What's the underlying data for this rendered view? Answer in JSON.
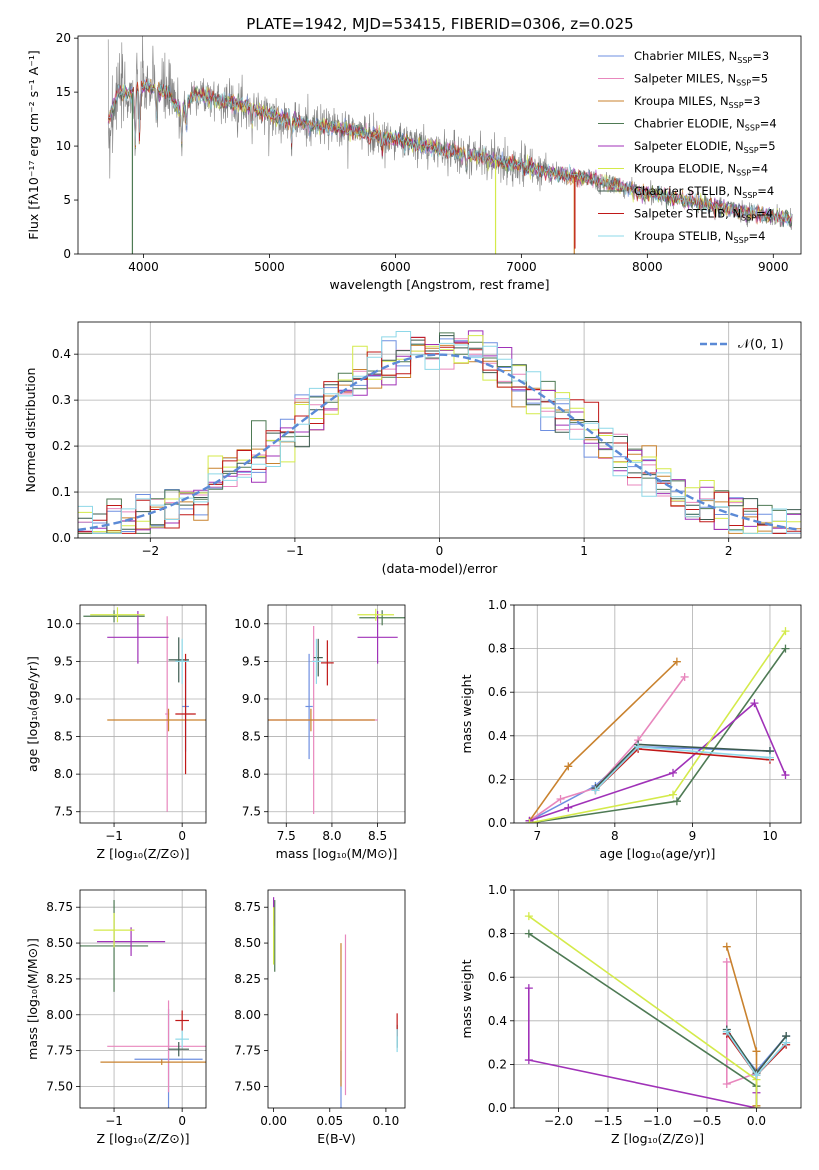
{
  "figure_title": "PLATE=1942, MJD=53415, FIBERID=0306, z=0.025",
  "models": [
    {
      "name": "Chabrier MILES",
      "nssp": "3",
      "color": "#6e8fe0"
    },
    {
      "name": "Salpeter MILES",
      "nssp": "5",
      "color": "#e887bd"
    },
    {
      "name": "Kroupa MILES",
      "nssp": "3",
      "color": "#c9822e"
    },
    {
      "name": "Chabrier ELODIE",
      "nssp": "4",
      "color": "#4e7a54"
    },
    {
      "name": "Salpeter ELODIE",
      "nssp": "5",
      "color": "#a032b8"
    },
    {
      "name": "Kroupa ELODIE",
      "nssp": "4",
      "color": "#d4ea4a"
    },
    {
      "name": "Chabrier STELIB",
      "nssp": "4",
      "color": "#3c5a4e"
    },
    {
      "name": "Salpeter STELIB",
      "nssp": "4",
      "color": "#c01818"
    },
    {
      "name": "Kroupa STELIB",
      "nssp": "4",
      "color": "#8ed8e8"
    }
  ],
  "chart_data": [
    {
      "id": "spectrum",
      "type": "line",
      "xlabel": "wavelength [Angstrom, rest frame]",
      "ylabel": "Flux [fλ10⁻¹⁷ erg cm⁻² s⁻¹ A⁻¹]",
      "xlim": [
        3480,
        9220
      ],
      "ylim": [
        0,
        20.2
      ],
      "xticks": [
        4000,
        5000,
        6000,
        7000,
        8000,
        9000
      ],
      "yticks": [
        0,
        5,
        10,
        15,
        20
      ],
      "data_color": "#808080",
      "data_range": [
        3720,
        9150
      ],
      "grid": false,
      "legend": "top-right",
      "continuum": {
        "x": [
          3720,
          3800,
          3900,
          4000,
          4100,
          4200,
          4300,
          4400,
          4600,
          4800,
          5000,
          5300,
          5600,
          6000,
          6400,
          6800,
          7200,
          7600,
          8000,
          8400,
          8800,
          9150
        ],
        "y": [
          12.5,
          15.0,
          14.8,
          15.5,
          15.3,
          14.8,
          13.0,
          14.9,
          14.3,
          13.8,
          12.9,
          12.0,
          11.6,
          10.6,
          9.6,
          8.7,
          7.6,
          6.8,
          5.6,
          4.7,
          3.8,
          3.2
        ]
      },
      "absorption": [
        {
          "x": 3934,
          "depth": 6
        },
        {
          "x": 3969,
          "depth": 5
        },
        {
          "x": 4102,
          "depth": 3
        },
        {
          "x": 4304,
          "depth": 3
        },
        {
          "x": 4341,
          "depth": 2.5
        },
        {
          "x": 4861,
          "depth": 2
        },
        {
          "x": 5175,
          "depth": 2.5
        },
        {
          "x": 5894,
          "depth": 1.8
        },
        {
          "x": 6563,
          "depth": 1.5
        }
      ],
      "model_dropouts": [
        {
          "x": 3912,
          "to": 0,
          "color": "#4e7a54"
        },
        {
          "x": 6795,
          "to": 0,
          "color": "#d4ea4a"
        },
        {
          "x": 7420,
          "to": 0,
          "color": "#c9822e"
        },
        {
          "x": 7425,
          "to": 0.5,
          "color": "#c01818"
        }
      ]
    },
    {
      "id": "residual-hist",
      "type": "histogram",
      "xlabel": "(data-model)/error",
      "ylabel": "Normed distribution",
      "xlim": [
        -2.5,
        2.5
      ],
      "ylim": [
        0,
        0.47
      ],
      "xticks": [
        -2,
        -1,
        0,
        1,
        2
      ],
      "yticks": [
        0,
        0.1,
        0.2,
        0.3,
        0.4
      ],
      "grid": true,
      "legend": "top-right",
      "reference_label": "𝒩(0, 1)",
      "reference_color": "#5b8ad6",
      "bin_width": 0.1
    },
    {
      "id": "age-vs-Z",
      "type": "errorbar",
      "xlabel": "Z [log₁₀(Z/Z⊙)]",
      "ylabel": "age  [log₁₀(age/yr)]",
      "xlim": [
        -1.5,
        0.35
      ],
      "ylim": [
        7.35,
        10.25
      ],
      "xticks": [
        -1,
        0
      ],
      "yticks": [
        7.5,
        8.0,
        8.5,
        9.0,
        9.5,
        10.0
      ],
      "grid": true,
      "points": [
        {
          "model": 0,
          "x": 0.05,
          "xerr": 0.05,
          "y": 8.9,
          "yerr": 0.6
        },
        {
          "model": 1,
          "x": -0.22,
          "xerr": 0.03,
          "y": 8.8,
          "yerr": 1.3
        },
        {
          "model": 2,
          "x": -0.2,
          "xerr": 0.9,
          "y": 8.72,
          "yerr": 0.15
        },
        {
          "model": 3,
          "x": -1.0,
          "xerr": 0.45,
          "y": 10.1,
          "yerr": 0.08
        },
        {
          "model": 4,
          "x": -0.65,
          "xerr": 0.45,
          "y": 9.82,
          "yerr": 0.35
        },
        {
          "model": 5,
          "x": -0.95,
          "xerr": 0.4,
          "y": 10.12,
          "yerr": 0.1
        },
        {
          "model": 6,
          "x": -0.05,
          "xerr": 0.15,
          "y": 9.52,
          "yerr": 0.3
        },
        {
          "model": 7,
          "x": 0.05,
          "xerr": 0.15,
          "y": 8.8,
          "yerr": 0.8
        },
        {
          "model": 8,
          "x": 0.0,
          "xerr": 0.1,
          "y": 9.5,
          "yerr": 0.3
        }
      ]
    },
    {
      "id": "age-vs-mass",
      "type": "errorbar",
      "xlabel": "mass [log₁₀(M/M⊙)]",
      "ylabel": "",
      "xlim": [
        7.3,
        8.8
      ],
      "ylim": [
        7.35,
        10.25
      ],
      "xticks": [
        7.5,
        8.0,
        8.5
      ],
      "yticks": [
        7.5,
        8.0,
        8.5,
        9.0,
        9.5,
        10.0
      ],
      "grid": true,
      "points": [
        {
          "model": 0,
          "x": 7.75,
          "xerr": 0.04,
          "y": 8.9,
          "yerr": 0.7
        },
        {
          "model": 1,
          "x": 7.8,
          "xerr": 0.7,
          "y": 8.72,
          "yerr": 1.25
        },
        {
          "model": 2,
          "x": 7.77,
          "xerr": 0.7,
          "y": 8.72,
          "yerr": 0.15
        },
        {
          "model": 3,
          "x": 8.55,
          "xerr": 0.25,
          "y": 10.08,
          "yerr": 0.1
        },
        {
          "model": 4,
          "x": 8.5,
          "xerr": 0.22,
          "y": 9.82,
          "yerr": 0.35
        },
        {
          "model": 5,
          "x": 8.48,
          "xerr": 0.2,
          "y": 10.12,
          "yerr": 0.08
        },
        {
          "model": 6,
          "x": 7.85,
          "xerr": 0.05,
          "y": 9.55,
          "yerr": 0.25
        },
        {
          "model": 7,
          "x": 7.95,
          "xerr": 0.07,
          "y": 9.48,
          "yerr": 0.3
        },
        {
          "model": 8,
          "x": 7.83,
          "xerr": 0.05,
          "y": 9.5,
          "yerr": 0.3
        }
      ]
    },
    {
      "id": "weight-vs-age",
      "type": "line",
      "xlabel": "age  [log₁₀(age/yr)]",
      "ylabel": "mass weight",
      "xlim": [
        6.7,
        10.4
      ],
      "ylim": [
        0,
        1.0
      ],
      "xticks": [
        7,
        8,
        9,
        10
      ],
      "yticks": [
        0,
        0.2,
        0.4,
        0.6,
        0.8,
        1.0
      ],
      "grid": true,
      "series": [
        {
          "model": 0,
          "x": [
            6.9,
            7.75,
            8.3,
            10.0
          ],
          "y": [
            0.01,
            0.17,
            0.35,
            0.33
          ]
        },
        {
          "model": 1,
          "x": [
            6.9,
            7.3,
            7.75,
            8.3,
            8.9
          ],
          "y": [
            0.01,
            0.11,
            0.16,
            0.38,
            0.67
          ]
        },
        {
          "model": 2,
          "x": [
            6.9,
            7.4,
            8.8
          ],
          "y": [
            0.01,
            0.26,
            0.74
          ]
        },
        {
          "model": 3,
          "x": [
            6.9,
            8.8,
            10.2
          ],
          "y": [
            0.0,
            0.1,
            0.8
          ]
        },
        {
          "model": 4,
          "x": [
            6.9,
            7.4,
            8.75,
            9.8,
            10.2
          ],
          "y": [
            0.01,
            0.07,
            0.23,
            0.55,
            0.22
          ]
        },
        {
          "model": 5,
          "x": [
            6.9,
            8.75,
            10.2
          ],
          "y": [
            0.0,
            0.13,
            0.88
          ]
        },
        {
          "model": 6,
          "x": [
            7.75,
            8.3,
            10.0
          ],
          "y": [
            0.16,
            0.36,
            0.33
          ]
        },
        {
          "model": 7,
          "x": [
            7.75,
            8.3,
            10.0
          ],
          "y": [
            0.15,
            0.34,
            0.29
          ]
        },
        {
          "model": 8,
          "x": [
            7.75,
            8.3,
            10.0
          ],
          "y": [
            0.15,
            0.35,
            0.3
          ]
        }
      ]
    },
    {
      "id": "mass-vs-Z",
      "type": "errorbar",
      "xlabel": "Z [log₁₀(Z/Z⊙)]",
      "ylabel": "mass [log₁₀(M/M⊙)]",
      "xlim": [
        -1.5,
        0.35
      ],
      "ylim": [
        7.35,
        8.87
      ],
      "xticks": [
        -1,
        0
      ],
      "yticks": [
        7.5,
        7.75,
        8.0,
        8.25,
        8.5,
        8.75
      ],
      "grid": true,
      "points": [
        {
          "model": 0,
          "x": -0.2,
          "xerr": 0.5,
          "y": 7.69,
          "yerr": 0.35
        },
        {
          "model": 1,
          "x": -0.2,
          "xerr": 0.9,
          "y": 7.78,
          "yerr": 0.32
        },
        {
          "model": 2,
          "x": -0.3,
          "xerr": 0.9,
          "y": 7.67,
          "yerr": 0.02
        },
        {
          "model": 3,
          "x": -1.0,
          "xerr": 0.5,
          "y": 8.48,
          "yerr": 0.32
        },
        {
          "model": 4,
          "x": -0.75,
          "xerr": 0.5,
          "y": 8.51,
          "yerr": 0.1
        },
        {
          "model": 5,
          "x": -1.0,
          "xerr": 0.3,
          "y": 8.59,
          "yerr": 0.12
        },
        {
          "model": 6,
          "x": -0.05,
          "xerr": 0.15,
          "y": 7.76,
          "yerr": 0.05
        },
        {
          "model": 7,
          "x": 0.0,
          "xerr": 0.1,
          "y": 7.96,
          "yerr": 0.07
        },
        {
          "model": 8,
          "x": 0.0,
          "xerr": 0.1,
          "y": 7.83,
          "yerr": 0.06
        }
      ]
    },
    {
      "id": "mass-vs-EBV",
      "type": "errorbar",
      "xlabel": "E(B-V)",
      "ylabel": "",
      "xlim": [
        -0.005,
        0.117
      ],
      "ylim": [
        7.35,
        8.87
      ],
      "xticks": [
        0.0,
        0.05,
        0.1
      ],
      "yticks": [
        7.5,
        7.75,
        8.0,
        8.25,
        8.5,
        8.75
      ],
      "grid": false,
      "points": [
        {
          "model": 0,
          "x": 0.06,
          "xerr": 0,
          "y": 7.55,
          "yerr": 0.2
        },
        {
          "model": 1,
          "x": 0.064,
          "xerr": 0,
          "y": 8.0,
          "yerr": 0.56
        },
        {
          "model": 2,
          "x": 0.06,
          "xerr": 0,
          "y": 8.0,
          "yerr": 0.5
        },
        {
          "model": 3,
          "x": 0.001,
          "xerr": 0,
          "y": 8.55,
          "yerr": 0.25
        },
        {
          "model": 4,
          "x": 0.0,
          "xerr": 0,
          "y": 8.72,
          "yerr": 0.1
        },
        {
          "model": 5,
          "x": 0.0,
          "xerr": 0,
          "y": 8.55,
          "yerr": 0.2
        },
        {
          "model": 6,
          "x": 0.11,
          "xerr": 0,
          "y": 7.85,
          "yerr": 0.08
        },
        {
          "model": 7,
          "x": 0.11,
          "xerr": 0,
          "y": 7.93,
          "yerr": 0.08
        },
        {
          "model": 8,
          "x": 0.11,
          "xerr": 0,
          "y": 7.82,
          "yerr": 0.08
        }
      ]
    },
    {
      "id": "weight-vs-Z",
      "type": "line",
      "xlabel": "Z [log₁₀(Z/Z⊙)]",
      "ylabel": "mass weight",
      "xlim": [
        -2.45,
        0.45
      ],
      "ylim": [
        0,
        1.0
      ],
      "xticks": [
        -2.0,
        -1.5,
        -1.0,
        -0.5,
        0.0
      ],
      "yticks": [
        0,
        0.2,
        0.4,
        0.6,
        0.8,
        1.0
      ],
      "grid": true,
      "series": [
        {
          "model": 0,
          "x": [
            -0.3,
            0.0,
            0.3
          ],
          "y": [
            0.34,
            0.17,
            0.33
          ]
        },
        {
          "model": 1,
          "x": [
            -0.3,
            -0.3,
            0.0
          ],
          "y": [
            0.67,
            0.11,
            0.16
          ]
        },
        {
          "model": 2,
          "x": [
            -0.3,
            0.0,
            0.0
          ],
          "y": [
            0.74,
            0.26,
            0.01
          ]
        },
        {
          "model": 3,
          "x": [
            -2.3,
            0.0,
            0.0
          ],
          "y": [
            0.8,
            0.1,
            0.0
          ]
        },
        {
          "model": 4,
          "x": [
            -2.3,
            -2.3,
            0.0,
            0.0
          ],
          "y": [
            0.55,
            0.22,
            0.0,
            0.07
          ]
        },
        {
          "model": 5,
          "x": [
            -2.3,
            0.0,
            0.0
          ],
          "y": [
            0.88,
            0.13,
            0.0
          ]
        },
        {
          "model": 6,
          "x": [
            -0.3,
            0.0,
            0.3
          ],
          "y": [
            0.36,
            0.16,
            0.33
          ]
        },
        {
          "model": 7,
          "x": [
            -0.3,
            0.0,
            0.3
          ],
          "y": [
            0.34,
            0.15,
            0.29
          ]
        },
        {
          "model": 8,
          "x": [
            -0.3,
            0.0,
            0.3
          ],
          "y": [
            0.35,
            0.15,
            0.3
          ]
        }
      ]
    }
  ]
}
